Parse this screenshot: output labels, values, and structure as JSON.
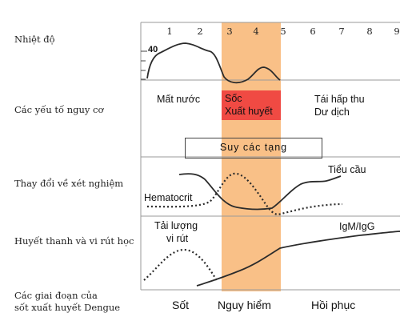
{
  "row_labels": {
    "temperature": "Nhiệt độ",
    "risk_factors": "Các yếu tố nguy cơ",
    "lab_changes": "Thay đổi về xét nghiệm",
    "serology": "Huyết thanh và vi rút học",
    "stages_line1": "Các giai đoạn của",
    "stages_line2": "sốt xuất huyết Dengue"
  },
  "days": [
    "1",
    "2",
    "3",
    "4",
    "5",
    "6",
    "7",
    "8",
    "9"
  ],
  "temperature_tick": "40",
  "risk": {
    "dehydration": "Mất nước",
    "shock": "Sốc",
    "hemorrhage": "Xuất huyết",
    "reabsorption": "Tái hấp thu",
    "fluid_overload": "Dư dịch",
    "organ_failure": "Suy các tạng"
  },
  "lab": {
    "platelets": "Tiểu cầu",
    "hematocrit": "Hematocrit"
  },
  "serology": {
    "viral_load_line1": "Tải lượng",
    "viral_load_line2": "vi rút",
    "antibody": "IgM/IgG"
  },
  "phases": {
    "febrile": "Sốt",
    "critical": "Nguy hiểm",
    "recovery": "Hồi phục"
  },
  "colors": {
    "critical_band": "#f9c087",
    "shock_box": "#f04a43",
    "line": "#2b2b2b",
    "divider": "#9a9a9a"
  }
}
